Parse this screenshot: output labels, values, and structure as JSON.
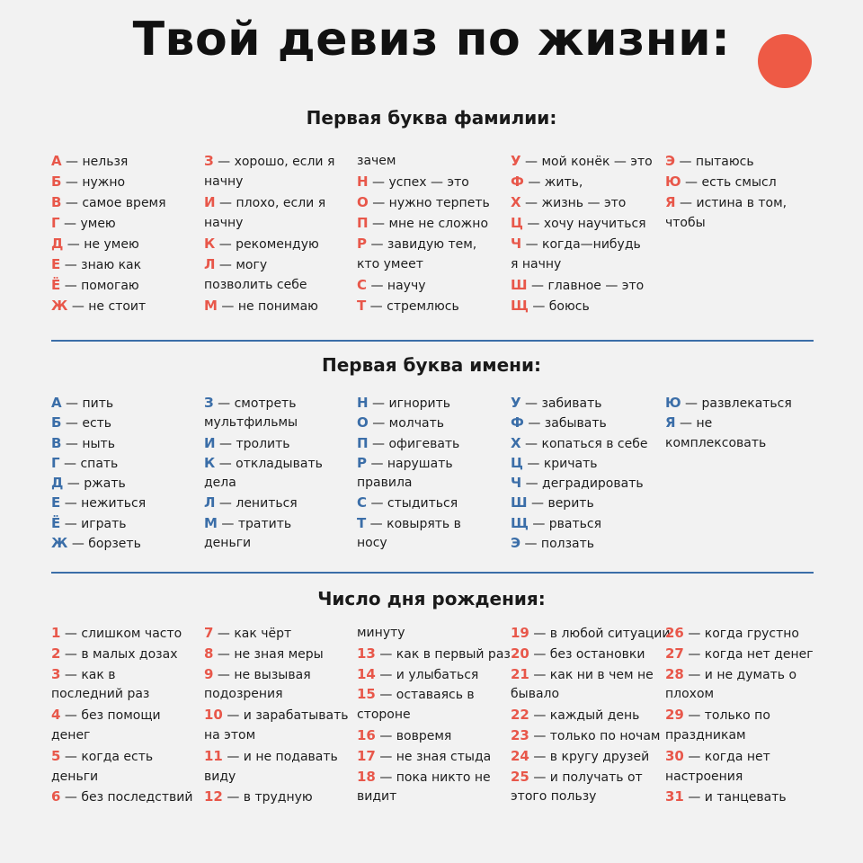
{
  "title": "Твой девиз по жизни:",
  "colors": {
    "accent_red": "#e8574a",
    "accent_blue": "#3b6ea8",
    "background": "#f2f2f2"
  },
  "sections": [
    {
      "heading": "Первая буква фамилии:",
      "theme": "red",
      "columns": [
        [
          {
            "k": "А",
            "t": "нельзя"
          },
          {
            "k": "Б",
            "t": "нужно"
          },
          {
            "k": "В",
            "t": "самое время"
          },
          {
            "k": "Г",
            "t": "умею"
          },
          {
            "k": "Д",
            "t": "не умею"
          },
          {
            "k": "Е",
            "t": "знаю как"
          },
          {
            "k": "Ё",
            "t": "помогаю"
          },
          {
            "k": "Ж",
            "t": "не стоит"
          }
        ],
        [
          {
            "k": "З",
            "t": "хорошо, если я"
          },
          {
            "k": "",
            "t": "начну"
          },
          {
            "k": "И",
            "t": "плохо, если я"
          },
          {
            "k": "",
            "t": "начну"
          },
          {
            "k": "К",
            "t": "рекомендую"
          },
          {
            "k": "Л",
            "t": "могу"
          },
          {
            "k": "",
            "t": "позволить себе"
          },
          {
            "k": "М",
            "t": "не понимаю"
          }
        ],
        [
          {
            "k": "",
            "t": "зачем"
          },
          {
            "k": "Н",
            "t": "успех — это"
          },
          {
            "k": "О",
            "t": "нужно терпеть"
          },
          {
            "k": "П",
            "t": "мне не сложно"
          },
          {
            "k": "Р",
            "t": "завидую тем,"
          },
          {
            "k": "",
            "t": "кто умеет"
          },
          {
            "k": "С",
            "t": "научу"
          },
          {
            "k": "Т",
            "t": "стремлюсь"
          }
        ],
        [
          {
            "k": "У",
            "t": "мой конёк — это"
          },
          {
            "k": "Ф",
            "t": "жить,"
          },
          {
            "k": "Х",
            "t": "жизнь — это"
          },
          {
            "k": "Ц",
            "t": "хочу научиться"
          },
          {
            "k": "Ч",
            "t": "когда—нибудь"
          },
          {
            "k": "",
            "t": "я начну"
          },
          {
            "k": "Ш",
            "t": "главное — это"
          },
          {
            "k": "Щ",
            "t": "боюсь"
          }
        ],
        [
          {
            "k": "Э",
            "t": "пытаюсь"
          },
          {
            "k": "Ю",
            "t": "есть смысл"
          },
          {
            "k": "Я",
            "t": "истина в том,"
          },
          {
            "k": "",
            "t": "чтобы"
          }
        ]
      ]
    },
    {
      "heading": "Первая буква имени:",
      "theme": "blue",
      "columns": [
        [
          {
            "k": "А",
            "t": "пить"
          },
          {
            "k": "Б",
            "t": "есть"
          },
          {
            "k": "В",
            "t": "ныть"
          },
          {
            "k": "Г",
            "t": "спать"
          },
          {
            "k": "Д",
            "t": "ржать"
          },
          {
            "k": "Е",
            "t": "нежиться"
          },
          {
            "k": "Ё",
            "t": "играть"
          },
          {
            "k": "Ж",
            "t": "борзеть"
          }
        ],
        [
          {
            "k": "З",
            "t": "смотреть"
          },
          {
            "k": "",
            "t": "мультфильмы"
          },
          {
            "k": "И",
            "t": "тролить"
          },
          {
            "k": "К",
            "t": "откладывать"
          },
          {
            "k": "",
            "t": "дела"
          },
          {
            "k": "Л",
            "t": "лениться"
          },
          {
            "k": "М",
            "t": "тратить"
          },
          {
            "k": "",
            "t": "деньги"
          }
        ],
        [
          {
            "k": "Н",
            "t": "игнорить"
          },
          {
            "k": "О",
            "t": "молчать"
          },
          {
            "k": "П",
            "t": "офигевать"
          },
          {
            "k": "Р",
            "t": "нарушать"
          },
          {
            "k": "",
            "t": "правила"
          },
          {
            "k": "С",
            "t": "стыдиться"
          },
          {
            "k": "Т",
            "t": "ковырять в"
          },
          {
            "k": "",
            "t": "носу"
          }
        ],
        [
          {
            "k": "У",
            "t": "забивать"
          },
          {
            "k": "Ф",
            "t": "забывать"
          },
          {
            "k": "Х",
            "t": "копаться в себе"
          },
          {
            "k": "Ц",
            "t": "кричать"
          },
          {
            "k": "Ч",
            "t": "деградировать"
          },
          {
            "k": "Ш",
            "t": "верить"
          },
          {
            "k": "Щ",
            "t": "рваться"
          },
          {
            "k": "Э",
            "t": "ползать"
          }
        ],
        [
          {
            "k": "Ю",
            "t": "развлекаться"
          },
          {
            "k": "Я",
            "t": "не"
          },
          {
            "k": "",
            "t": "комплексовать"
          }
        ]
      ]
    },
    {
      "heading": "Число дня рождения:",
      "theme": "red",
      "columns": [
        [
          {
            "k": "1",
            "t": "слишком часто"
          },
          {
            "k": "2",
            "t": "в малых дозах"
          },
          {
            "k": "3",
            "t": "как в"
          },
          {
            "k": "",
            "t": "последний раз"
          },
          {
            "k": "4",
            "t": "без помощи"
          },
          {
            "k": "",
            "t": "денег"
          },
          {
            "k": "5",
            "t": "когда есть"
          },
          {
            "k": "",
            "t": "деньги"
          },
          {
            "k": "6",
            "t": "без последствий"
          }
        ],
        [
          {
            "k": "7",
            "t": "как чёрт"
          },
          {
            "k": "8",
            "t": "не зная меры"
          },
          {
            "k": "9",
            "t": "не вызывая"
          },
          {
            "k": "",
            "t": "подозрения"
          },
          {
            "k": "10",
            "t": "и зарабатывать"
          },
          {
            "k": "",
            "t": "на этом"
          },
          {
            "k": "11",
            "t": "и не подавать"
          },
          {
            "k": "",
            "t": "виду"
          },
          {
            "k": "12",
            "t": "в трудную"
          }
        ],
        [
          {
            "k": "",
            "t": "минуту"
          },
          {
            "k": "13",
            "t": "как в первый раз"
          },
          {
            "k": "14",
            "t": "и улыбаться"
          },
          {
            "k": "15",
            "t": "оставаясь в"
          },
          {
            "k": "",
            "t": "стороне"
          },
          {
            "k": "16",
            "t": "вовремя"
          },
          {
            "k": "17",
            "t": "не зная стыда"
          },
          {
            "k": "18",
            "t": "пока никто не"
          },
          {
            "k": "",
            "t": "видит"
          }
        ],
        [
          {
            "k": "19",
            "t": "в любой ситуации"
          },
          {
            "k": "20",
            "t": "без остановки"
          },
          {
            "k": "21",
            "t": "как ни в чем не"
          },
          {
            "k": "",
            "t": "бывало"
          },
          {
            "k": "22",
            "t": "каждый день"
          },
          {
            "k": "23",
            "t": "только по ночам"
          },
          {
            "k": "24",
            "t": "в кругу друзей"
          },
          {
            "k": "25",
            "t": "и получать от"
          },
          {
            "k": "",
            "t": "этого пользу"
          }
        ],
        [
          {
            "k": "26",
            "t": "когда грустно"
          },
          {
            "k": "27",
            "t": "когда нет денег"
          },
          {
            "k": "28",
            "t": "и не думать о"
          },
          {
            "k": "",
            "t": "плохом"
          },
          {
            "k": "29",
            "t": "только по"
          },
          {
            "k": "",
            "t": "праздникам"
          },
          {
            "k": "30",
            "t": "когда нет"
          },
          {
            "k": "",
            "t": "настроения"
          },
          {
            "k": "31",
            "t": "и танцевать"
          }
        ]
      ]
    }
  ]
}
